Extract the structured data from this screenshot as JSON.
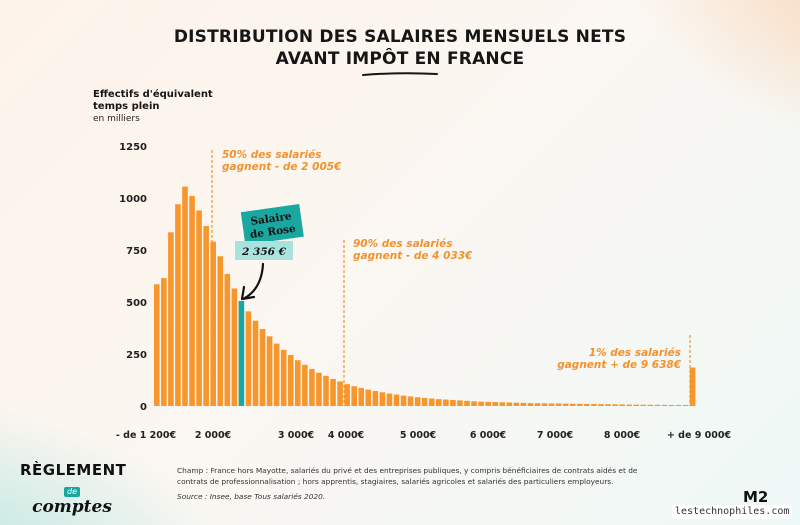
{
  "title_line1": "DISTRIBUTION DES SALAIRES MENSUELS NETS",
  "title_line2": "AVANT IMPÔT EN FRANCE",
  "chart_data": {
    "type": "bar",
    "ylabel": "Effectifs d'équivalent temps plein",
    "yunit": "en milliers",
    "ylim": [
      0,
      1250
    ],
    "yticks": [
      "0",
      "250",
      "500",
      "750",
      "1000",
      "1250"
    ],
    "xticks": [
      "- de 1 200€",
      "2 000€",
      "3 000€",
      "4 000€",
      "5 000€",
      "6 000€",
      "7 000€",
      "8 000€",
      "+ de 9 000€"
    ],
    "values": [
      585,
      615,
      835,
      970,
      1055,
      1010,
      940,
      865,
      790,
      720,
      635,
      565,
      505,
      455,
      410,
      370,
      335,
      300,
      270,
      245,
      220,
      198,
      178,
      160,
      145,
      130,
      118,
      105,
      95,
      87,
      79,
      72,
      66,
      60,
      55,
      50,
      46,
      42,
      39,
      36,
      33,
      31,
      29,
      27,
      25,
      23,
      21,
      20,
      19,
      18,
      17,
      16,
      15,
      14,
      13.5,
      13,
      12.5,
      12,
      11.5,
      11,
      10.5,
      10,
      9.5,
      9,
      8.5,
      8,
      7.5,
      7,
      6.5,
      6,
      6,
      5.5,
      5.5,
      5,
      5,
      5,
      185
    ],
    "highlight_index": 12,
    "colors": {
      "bar": "#f7962d",
      "highlight": "#1aa7a0",
      "annotation": "#f2922f",
      "tag": "#1aa7a0",
      "value_box": "#a8e3de"
    },
    "annotations": [
      {
        "line1": "50% des salariés",
        "line2": "gagnent - de 2 005€"
      },
      {
        "line1": "90% des salariés",
        "line2": "gagnent - de 4 033€"
      },
      {
        "line1": "1% des salariés",
        "line2": "gagnent + de 9 638€"
      }
    ],
    "highlight_tag_line1": "Salaire",
    "highlight_tag_line2": "de Rose",
    "highlight_value": "2 356  €"
  },
  "footer": {
    "logo_top": "RÈGLEMENT",
    "logo_de": "de",
    "logo_bottom": "comptes",
    "note": "Champ : France hors Mayotte, salariés du privé et des entreprises publiques, y compris bénéficiaires de contrats aidés et de contrats de professionnalisation ; hors apprentis, stagiaires, salariés agricoles et salariés des particuliers employeurs.",
    "source": "Source : Insee, base Tous salariés 2020.",
    "brand": "M2",
    "watermark": "lestechnophiles.com"
  }
}
